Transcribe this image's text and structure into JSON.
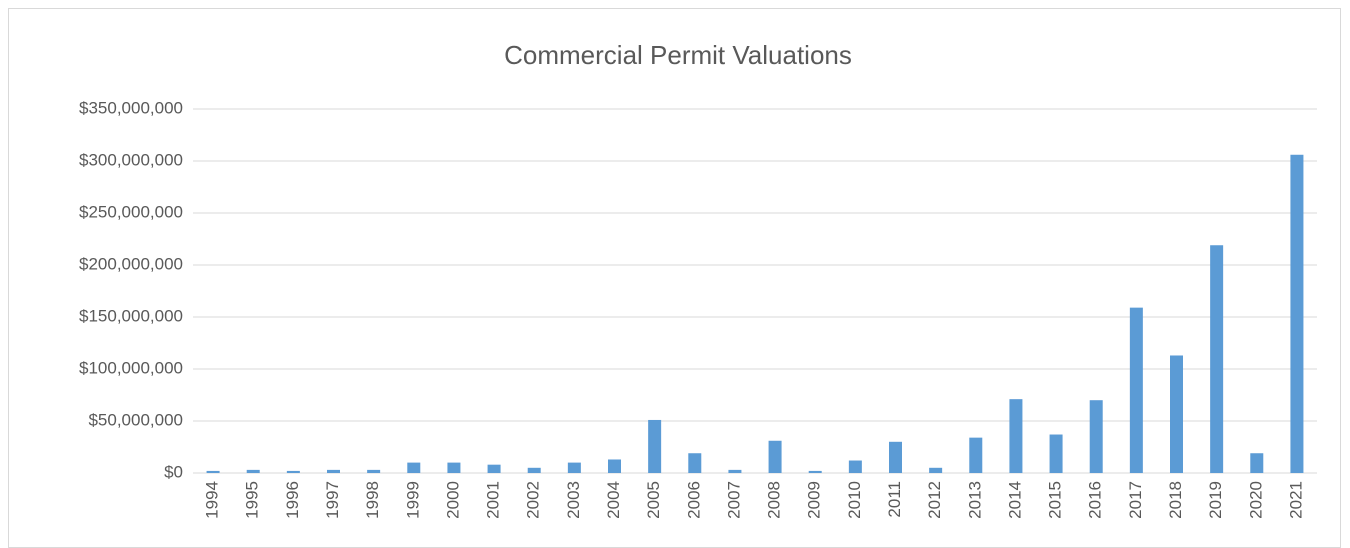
{
  "chart_data": {
    "type": "bar",
    "title": "Commercial Permit Valuations",
    "categories": [
      "1994",
      "1995",
      "1996",
      "1997",
      "1998",
      "1999",
      "2000",
      "2001",
      "2002",
      "2003",
      "2004",
      "2005",
      "2006",
      "2007",
      "2008",
      "2009",
      "2010",
      "2011",
      "2012",
      "2013",
      "2014",
      "2015",
      "2016",
      "2017",
      "2018",
      "2019",
      "2020",
      "2021"
    ],
    "values": [
      2000000,
      3000000,
      2000000,
      3000000,
      3000000,
      10000000,
      10000000,
      8000000,
      5000000,
      10000000,
      13000000,
      51000000,
      19000000,
      3000000,
      31000000,
      2000000,
      12000000,
      30000000,
      5000000,
      34000000,
      71000000,
      37000000,
      70000000,
      159000000,
      113000000,
      219000000,
      19000000,
      306000000
    ],
    "color": "#5b9bd5",
    "ylim": [
      0,
      350000000
    ],
    "yticks": [
      {
        "value": 0,
        "label": "$0"
      },
      {
        "value": 50000000,
        "label": "$50,000,000"
      },
      {
        "value": 100000000,
        "label": "$100,000,000"
      },
      {
        "value": 150000000,
        "label": "$150,000,000"
      },
      {
        "value": 200000000,
        "label": "$200,000,000"
      },
      {
        "value": 250000000,
        "label": "$250,000,000"
      },
      {
        "value": 300000000,
        "label": "$300,000,000"
      },
      {
        "value": 350000000,
        "label": "$350,000,000"
      }
    ],
    "grid": true
  }
}
